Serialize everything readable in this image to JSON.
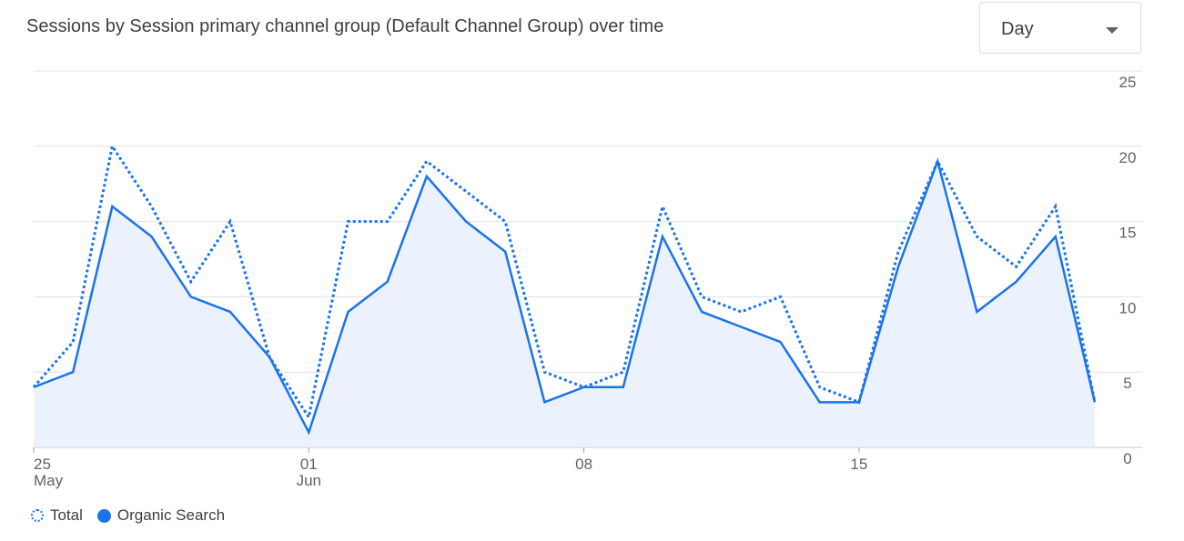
{
  "header": {
    "title": "Sessions by Session primary channel group (Default Channel Group) over time"
  },
  "granularity_select": {
    "value": "Day"
  },
  "legend": {
    "total_label": "Total",
    "organic_label": "Organic Search"
  },
  "colors": {
    "series": "#1a73e8",
    "area_fill": "#e8f0fe",
    "grid": "#e0e0e0",
    "text": "#5f6368"
  },
  "chart_data": {
    "type": "line",
    "x": [
      "May 25",
      "May 26",
      "May 27",
      "May 28",
      "May 29",
      "May 30",
      "May 31",
      "Jun 01",
      "Jun 02",
      "Jun 03",
      "Jun 04",
      "Jun 05",
      "Jun 06",
      "Jun 07",
      "Jun 08",
      "Jun 09",
      "Jun 10",
      "Jun 11",
      "Jun 12",
      "Jun 13",
      "Jun 14",
      "Jun 15",
      "Jun 16",
      "Jun 17",
      "Jun 18",
      "Jun 19",
      "Jun 20",
      "Jun 21"
    ],
    "series": [
      {
        "name": "Total",
        "style": "dotted",
        "values": [
          4,
          7,
          20,
          16,
          11,
          15,
          6,
          2,
          15,
          15,
          19,
          17,
          15,
          5,
          4,
          5,
          16,
          10,
          9,
          10,
          4,
          3,
          13,
          19,
          14,
          12,
          16,
          3
        ]
      },
      {
        "name": "Organic Search",
        "style": "solid",
        "area": true,
        "values": [
          4,
          5,
          16,
          14,
          10,
          9,
          6,
          1,
          9,
          11,
          18,
          15,
          13,
          3,
          4,
          4,
          14,
          9,
          8,
          7,
          3,
          3,
          12,
          19,
          9,
          11,
          14,
          3
        ]
      }
    ],
    "ylim": [
      0,
      25
    ],
    "yticks": [
      "0",
      "5",
      "10",
      "15",
      "20",
      "25"
    ],
    "y_axis_side": "right",
    "xticks": [
      {
        "index": 0,
        "day": "25",
        "month": "May"
      },
      {
        "index": 7,
        "day": "01",
        "month": "Jun"
      },
      {
        "index": 14,
        "day": "08",
        "month": ""
      },
      {
        "index": 21,
        "day": "15",
        "month": ""
      }
    ],
    "grid": true,
    "legend_position": "bottom-left"
  }
}
